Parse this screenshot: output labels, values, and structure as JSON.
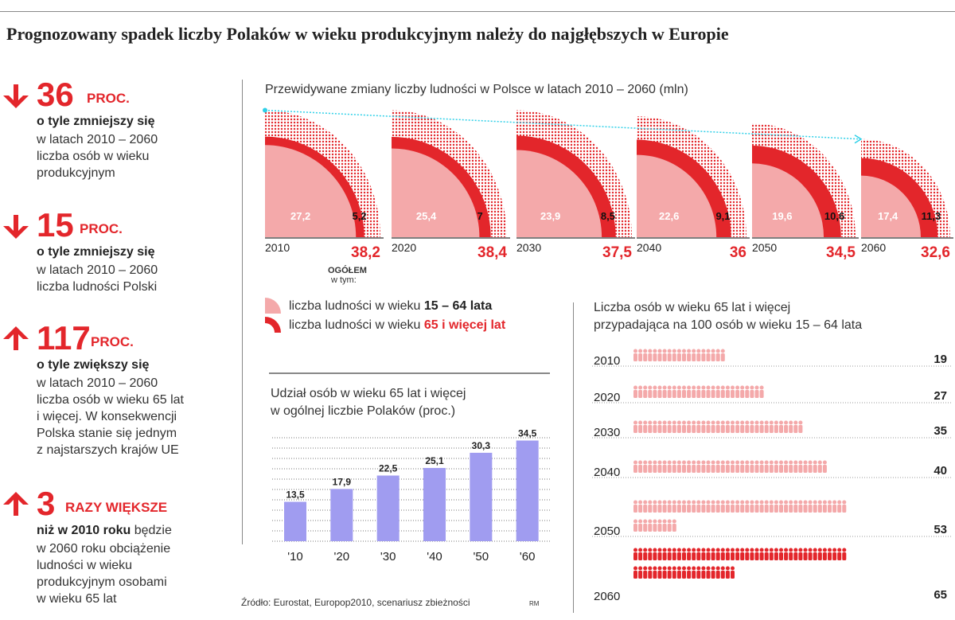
{
  "headline": "Prognozowany spadek liczby Polaków w wieku produkcyjnym należy do najgłębszych w Europie",
  "stats": [
    {
      "direction": "down",
      "value": "36",
      "unit": "PROC.",
      "lead": "o tyle zmniejszy się",
      "desc": "w latach 2010 – 2060\nliczba osób w wieku\nprodukcyjnym"
    },
    {
      "direction": "down",
      "value": "15",
      "unit": "PROC.",
      "lead": "o tyle zmniejszy się",
      "desc": "w latach 2010 – 2060\nliczba ludności Polski"
    },
    {
      "direction": "up",
      "value": "117",
      "unit": "PROC.",
      "lead": "o tyle zwiększy się",
      "desc": "w latach 2010 – 2060\nliczba osób w wieku 65 lat\ni więcej. W konsekwencji\nPolska stanie się jednym\nz najstarszych krajów UE"
    },
    {
      "direction": "up",
      "value": "3",
      "unit": "RAZY WIĘKSZE",
      "lead": "niż w 2010 roku",
      "lead_rest": "będzie",
      "desc": "w 2060 roku obciążenie\nludności w wieku\nprodukcyjnym osobami\nw wieku 65 lat"
    }
  ],
  "colors": {
    "red": "#e3262b",
    "pink": "#f4a9aa",
    "purple": "#a09cf0",
    "cyan": "#2fd0e8",
    "grey": "#888888"
  },
  "chart_data": [
    {
      "type": "area",
      "title": "Przewidywane zmiany liczby ludności w Polsce w latach 2010 – 2060 (mln)",
      "categories": [
        "2010",
        "2020",
        "2030",
        "2040",
        "2050",
        "2060"
      ],
      "series": [
        {
          "name": "liczba ludności w wieku 15 – 64 lata",
          "values": [
            27.2,
            25.4,
            23.9,
            22.6,
            19.6,
            17.4
          ],
          "labels": [
            "27,2",
            "25,4",
            "23,9",
            "22,6",
            "19,6",
            "17,4"
          ]
        },
        {
          "name": "liczba ludności w wieku 65 i więcej lat",
          "values": [
            5.2,
            7,
            8.5,
            9.1,
            10.6,
            11.3
          ],
          "labels": [
            "5,2",
            "7",
            "8,5",
            "9,1",
            "10,6",
            "11,3"
          ]
        }
      ],
      "totals": [
        38.2,
        38.4,
        37.5,
        36,
        34.5,
        32.6
      ],
      "total_labels": [
        "38,2",
        "38,4",
        "37,5",
        "36",
        "34,5",
        "32,6"
      ],
      "total_caption": "OGÓŁEM",
      "total_caption2": "w tym:",
      "legend": [
        {
          "prefix": "liczba ludności w wieku ",
          "bold": "15 – 64 lata"
        },
        {
          "prefix": "liczba ludności w wieku ",
          "bold": "65 i więcej lat"
        }
      ]
    },
    {
      "type": "bar",
      "title_line1": "Udział osób w wieku 65 lat i więcej",
      "title_line2": "w ogólnej liczbie Polaków (proc.)",
      "categories": [
        "'10",
        "'20",
        "'30",
        "'40",
        "'50",
        "'60"
      ],
      "values": [
        13.5,
        17.9,
        22.5,
        25.1,
        30.3,
        34.5
      ],
      "labels": [
        "13,5",
        "17,9",
        "22,5",
        "25,1",
        "30,3",
        "34,5"
      ],
      "ylim": [
        0,
        36
      ],
      "grid": true
    },
    {
      "type": "bar",
      "title_line1": "Liczba osób w wieku 65 lat i więcej",
      "title_line2": "przypadająca na 100 osób w wieku 15 – 64 lata",
      "categories": [
        "2010",
        "2020",
        "2030",
        "2040",
        "2050",
        "2060"
      ],
      "values": [
        19,
        27,
        35,
        40,
        53,
        65
      ]
    }
  ],
  "source": "Źródło: Eurostat, Europop2010, scenariusz zbieżności",
  "credit": "RM"
}
